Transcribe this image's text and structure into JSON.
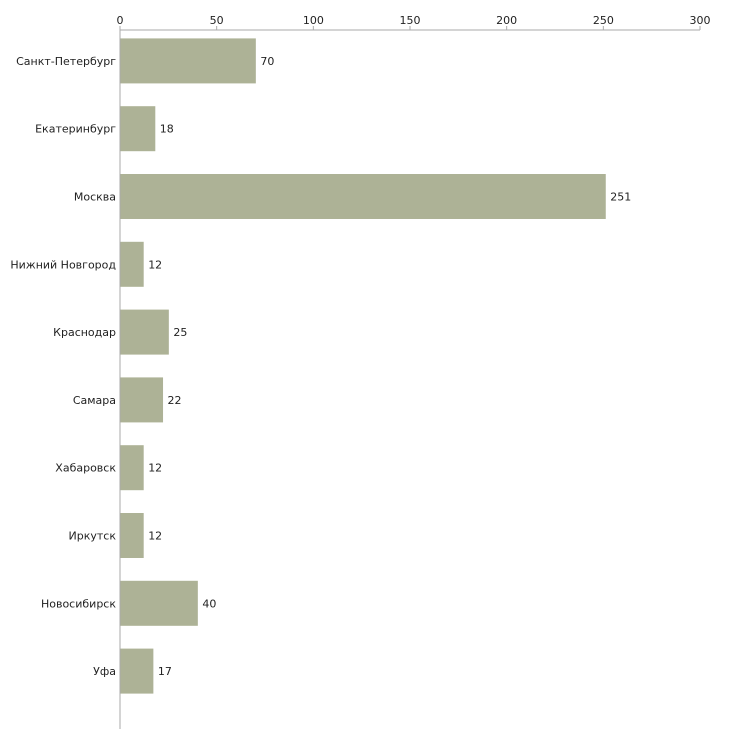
{
  "chart_data": {
    "type": "bar",
    "orientation": "horizontal",
    "title": "",
    "xlabel": "",
    "ylabel": "",
    "xlim": [
      0,
      300
    ],
    "ticks": [
      0,
      50,
      100,
      150,
      200,
      250,
      300
    ],
    "tick_labels": [
      "0",
      "50",
      "100",
      "150",
      "200",
      "250",
      "300"
    ],
    "categories": [
      "Санкт-Петербург",
      "Екатеринбург",
      "Москва",
      "Нижний Новгород",
      "Краснодар",
      "Самара",
      "Хабаровск",
      "Иркутск",
      "Новосибирск",
      "Уфа"
    ],
    "values": [
      70,
      18,
      251,
      12,
      25,
      22,
      12,
      12,
      40,
      17
    ],
    "value_labels": [
      "70",
      "18",
      "251",
      "12",
      "25",
      "22",
      "12",
      "12",
      "40",
      "17"
    ],
    "bar_color": "#adb296",
    "axis_color": "#aaaaaa",
    "grid": false,
    "legend": "none"
  }
}
